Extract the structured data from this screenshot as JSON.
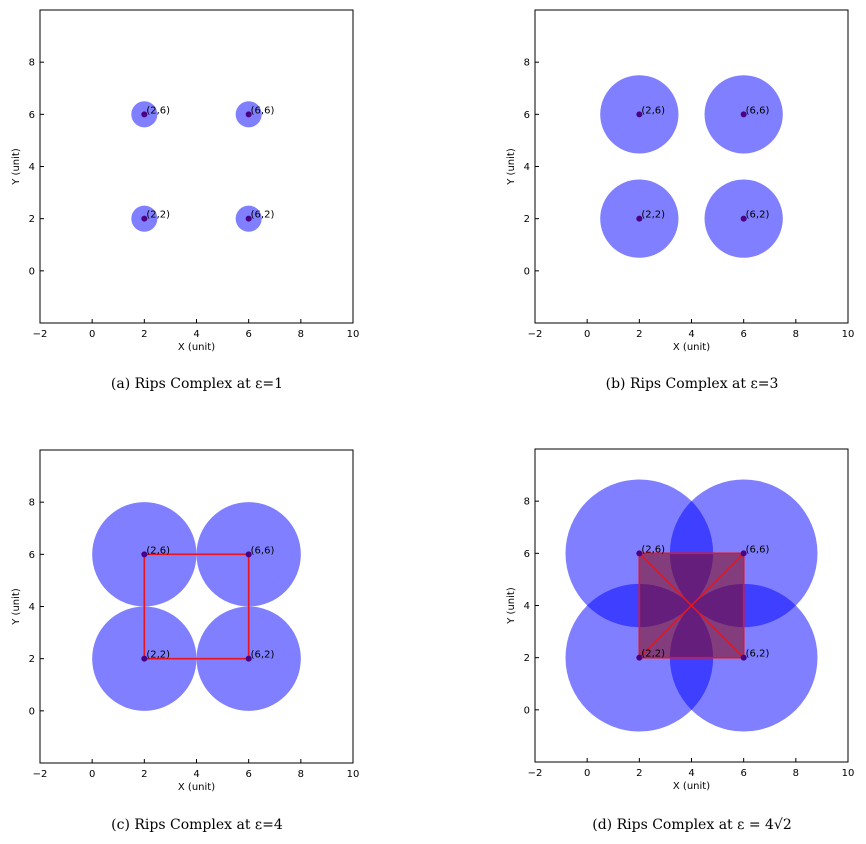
{
  "chart_data": [
    {
      "type": "scatter",
      "caption": "(a) Rips Complex at ε=1",
      "xlabel": "X (unit)",
      "ylabel": "Y (unit)",
      "xlim": [
        -2,
        10
      ],
      "ylim": [
        -2,
        10
      ],
      "xticks": [
        -2,
        0,
        2,
        4,
        6,
        8,
        10
      ],
      "yticks": [
        0,
        2,
        4,
        6,
        8
      ],
      "points": [
        {
          "x": 2,
          "y": 6,
          "label": "(2,6)"
        },
        {
          "x": 6,
          "y": 6,
          "label": "(6,6)"
        },
        {
          "x": 2,
          "y": 2,
          "label": "(2,2)"
        },
        {
          "x": 6,
          "y": 2,
          "label": "(6,2)"
        }
      ],
      "radius": 0.5,
      "edges": [],
      "triangles": []
    },
    {
      "type": "scatter",
      "caption": "(b) Rips Complex at ε=3",
      "xlabel": "X (unit)",
      "ylabel": "Y (unit)",
      "xlim": [
        -2,
        10
      ],
      "ylim": [
        -2,
        10
      ],
      "xticks": [
        -2,
        0,
        2,
        4,
        6,
        8,
        10
      ],
      "yticks": [
        0,
        2,
        4,
        6,
        8
      ],
      "points": [
        {
          "x": 2,
          "y": 6,
          "label": "(2,6)"
        },
        {
          "x": 6,
          "y": 6,
          "label": "(6,6)"
        },
        {
          "x": 2,
          "y": 2,
          "label": "(2,2)"
        },
        {
          "x": 6,
          "y": 2,
          "label": "(6,2)"
        }
      ],
      "radius": 1.5,
      "edges": [],
      "triangles": []
    },
    {
      "type": "scatter",
      "caption": "(c) Rips Complex at ε=4",
      "xlabel": "X (unit)",
      "ylabel": "Y (unit)",
      "xlim": [
        -2,
        10
      ],
      "ylim": [
        -2,
        10
      ],
      "xticks": [
        -2,
        0,
        2,
        4,
        6,
        8,
        10
      ],
      "yticks": [
        0,
        2,
        4,
        6,
        8
      ],
      "points": [
        {
          "x": 2,
          "y": 6,
          "label": "(2,6)"
        },
        {
          "x": 6,
          "y": 6,
          "label": "(6,6)"
        },
        {
          "x": 2,
          "y": 2,
          "label": "(2,2)"
        },
        {
          "x": 6,
          "y": 2,
          "label": "(6,2)"
        }
      ],
      "radius": 2,
      "edges": [
        [
          0,
          1
        ],
        [
          1,
          3
        ],
        [
          3,
          2
        ],
        [
          2,
          0
        ]
      ],
      "triangles": []
    },
    {
      "type": "scatter",
      "caption": "(d) Rips Complex at ε = 4√2",
      "xlabel": "X (unit)",
      "ylabel": "Y (unit)",
      "xlim": [
        -2,
        10
      ],
      "ylim": [
        -2,
        10
      ],
      "xticks": [
        -2,
        0,
        2,
        4,
        6,
        8,
        10
      ],
      "yticks": [
        0,
        2,
        4,
        6,
        8
      ],
      "points": [
        {
          "x": 2,
          "y": 6,
          "label": "(2,6)"
        },
        {
          "x": 6,
          "y": 6,
          "label": "(6,6)"
        },
        {
          "x": 2,
          "y": 2,
          "label": "(2,2)"
        },
        {
          "x": 6,
          "y": 2,
          "label": "(6,2)"
        }
      ],
      "radius": 2.83,
      "edges": [
        [
          0,
          1
        ],
        [
          1,
          3
        ],
        [
          3,
          2
        ],
        [
          2,
          0
        ],
        [
          0,
          3
        ],
        [
          1,
          2
        ]
      ],
      "triangles": [
        [
          0,
          1,
          3
        ],
        [
          0,
          2,
          3
        ],
        [
          0,
          1,
          2
        ],
        [
          1,
          2,
          3
        ]
      ]
    }
  ],
  "colors": {
    "disk": "#0000ff",
    "point": "#4b0082",
    "edge": "#e8141e",
    "triangle": "#8b0000"
  }
}
